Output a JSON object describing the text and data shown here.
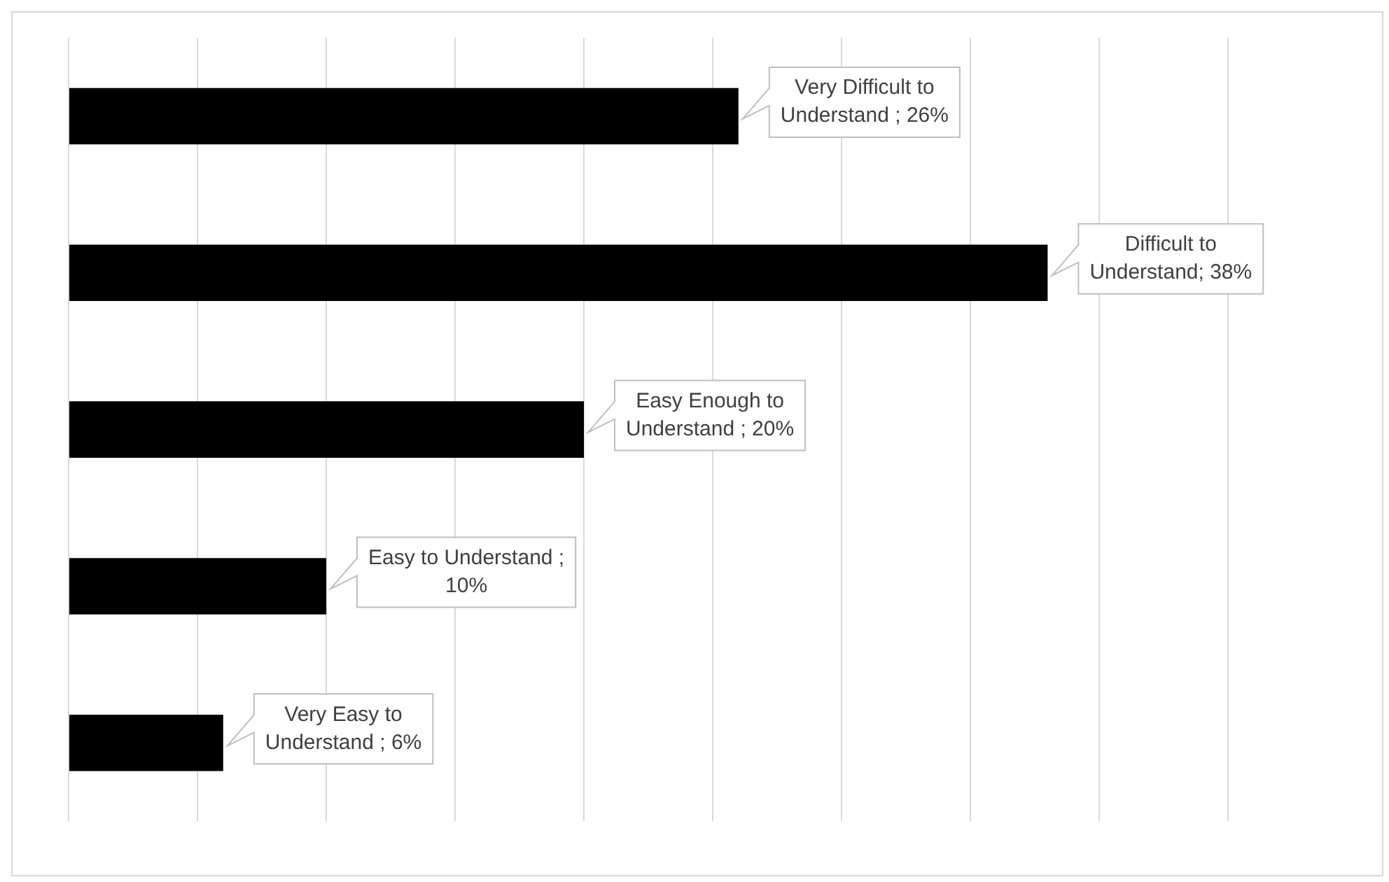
{
  "chart_data": {
    "type": "bar",
    "orientation": "horizontal",
    "categories": [
      null,
      null,
      null,
      null,
      null
    ],
    "values": [
      26,
      38,
      20,
      10,
      6
    ],
    "color": "#000000",
    "value_labels": [
      "Very Difficult to Understand ; 26%",
      "Difficult to Understand; 38%",
      "Easy Enough to Understand ; 20%",
      "Easy to Understand ; 10%",
      "Very Easy to Understand ; 6%"
    ],
    "xlim": [
      0,
      45
    ],
    "xticks": [
      {
        "value": 0,
        "label": null
      },
      {
        "value": 5,
        "label": null
      },
      {
        "value": 10,
        "label": null
      },
      {
        "value": 15,
        "label": null
      },
      {
        "value": 20,
        "label": null
      },
      {
        "value": 25,
        "label": null
      },
      {
        "value": 30,
        "label": null
      },
      {
        "value": 35,
        "label": null
      },
      {
        "value": 40,
        "label": null
      },
      {
        "value": 45,
        "label": null
      }
    ],
    "grid": "x"
  }
}
